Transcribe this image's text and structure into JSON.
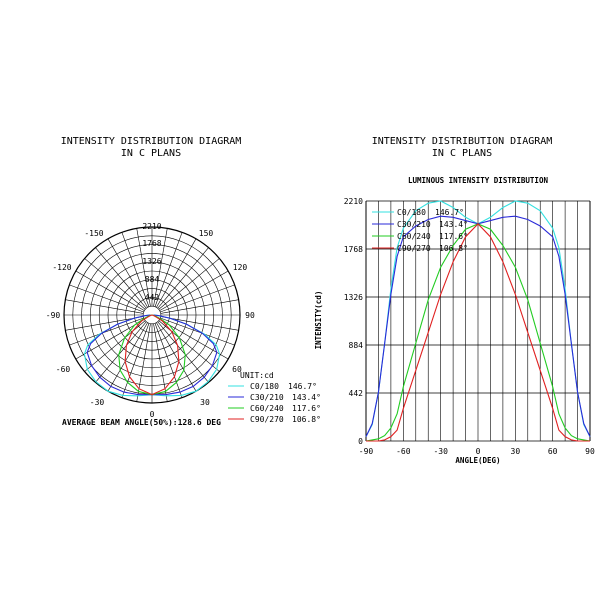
{
  "chart_data": [
    {
      "type": "polar",
      "title_line1": "INTENSITY DISTRIBUTION DIAGRAM",
      "title_line2": "IN C PLANS",
      "radial_ticks": [
        442,
        884,
        1326,
        1768,
        2210
      ],
      "radial_max": 2210,
      "angle_labels": [
        "-150",
        "150",
        "-120",
        "120",
        "-90",
        "90",
        "-60",
        "60",
        "-30",
        "30",
        "0"
      ],
      "unit_label": "UNIT:cd",
      "footer": "AVERAGE BEAM ANGLE(50%):128.6 DEG",
      "angles_deg": [
        0,
        10,
        20,
        30,
        40,
        50,
        60,
        65,
        70,
        75,
        80,
        85,
        90
      ],
      "series": [
        {
          "name": "C0/180",
          "beam": "146.7°",
          "color": "#33e0e0",
          "values": [
            2000,
            2060,
            2150,
            2210,
            2190,
            2120,
            1960,
            1780,
            1400,
            900,
            450,
            150,
            40
          ]
        },
        {
          "name": "C30/210",
          "beam": "143.4°",
          "color": "#2a2ad8",
          "values": [
            2000,
            2030,
            2060,
            2070,
            2040,
            1980,
            1880,
            1700,
            1350,
            900,
            450,
            160,
            40
          ]
        },
        {
          "name": "C60/240",
          "beam": "117.6°",
          "color": "#22cc22",
          "values": [
            2000,
            1950,
            1800,
            1600,
            1300,
            900,
            500,
            250,
            120,
            50,
            20,
            10,
            0
          ]
        },
        {
          "name": "C90/270",
          "beam": "106.8°",
          "color": "#e02020",
          "values": [
            2000,
            1880,
            1650,
            1350,
            1000,
            650,
            300,
            100,
            40,
            10,
            0,
            0,
            0
          ]
        }
      ]
    },
    {
      "type": "line",
      "title_line1": "INTENSITY DISTRIBUTION DIAGRAM",
      "title_line2": "IN C PLANS",
      "subtitle": "LUMINOUS INTENSITY DISTRIBUTION",
      "xlabel": "ANGLE(DEG)",
      "ylabel": "INTENSITY(cd)",
      "xlim": [
        -90,
        90
      ],
      "ylim": [
        0,
        2210
      ],
      "x_ticks": [
        -90,
        -60,
        -30,
        0,
        30,
        60,
        90
      ],
      "y_ticks": [
        0,
        442,
        884,
        1326,
        1768,
        2210
      ],
      "legend_location": "top-left",
      "x": [
        -90,
        -85,
        -80,
        -75,
        -70,
        -65,
        -60,
        -50,
        -40,
        -30,
        -20,
        -10,
        0,
        10,
        20,
        30,
        40,
        50,
        60,
        65,
        70,
        75,
        80,
        85,
        90
      ],
      "series": [
        {
          "name": "C0/180",
          "beam": "146.7°",
          "color": "#33e0e0",
          "values": [
            40,
            150,
            450,
            900,
            1400,
            1780,
            1960,
            2120,
            2190,
            2210,
            2150,
            2060,
            2000,
            2060,
            2150,
            2210,
            2190,
            2120,
            1960,
            1780,
            1400,
            900,
            450,
            150,
            40
          ]
        },
        {
          "name": "C30/210",
          "beam": "143.4°",
          "color": "#2a2ad8",
          "values": [
            40,
            160,
            450,
            900,
            1350,
            1700,
            1880,
            1980,
            2040,
            2070,
            2060,
            2030,
            2000,
            2030,
            2060,
            2070,
            2040,
            1980,
            1880,
            1700,
            1350,
            900,
            450,
            160,
            40
          ]
        },
        {
          "name": "C60/240",
          "beam": "117.6°",
          "color": "#22cc22",
          "values": [
            0,
            10,
            20,
            50,
            120,
            250,
            500,
            900,
            1300,
            1600,
            1800,
            1950,
            2000,
            1950,
            1800,
            1600,
            1300,
            900,
            500,
            250,
            120,
            50,
            20,
            10,
            0
          ]
        },
        {
          "name": "C90/270",
          "beam": "106.8°",
          "color": "#e02020",
          "values": [
            0,
            0,
            0,
            10,
            40,
            100,
            300,
            650,
            1000,
            1350,
            1650,
            1880,
            2000,
            1880,
            1650,
            1350,
            1000,
            650,
            300,
            100,
            40,
            10,
            0,
            0,
            0
          ]
        }
      ]
    }
  ]
}
